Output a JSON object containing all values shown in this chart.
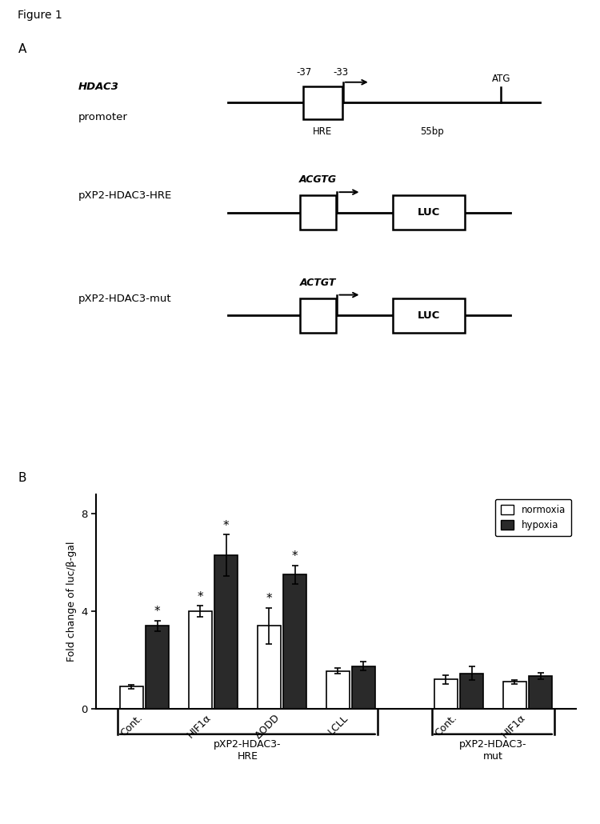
{
  "figure_title": "Figure 1",
  "panel_a_label": "A",
  "panel_b_label": "B",
  "background_color": "#ffffff",
  "hdac3_label": "HDAC3",
  "promoter_label": "promoter",
  "minus37_label": "-37",
  "minus33_label": "-33",
  "atg_label": "ATG",
  "hre_label": "HRE",
  "bp55_label": "55bp",
  "hre_construct_label": "pXP2-HDAC3-HRE",
  "hre_seq_label": "ACGTG",
  "mut_construct_label": "pXP2-HDAC3-mut",
  "mut_seq_label": "ACTGT",
  "luc_label": "LUC",
  "ylabel": "Fold change of luc/β-gal",
  "yticks": [
    0,
    4,
    8
  ],
  "ylim": [
    0,
    8.8
  ],
  "categories": [
    "Cont.",
    "HIF1α",
    "ΔODD",
    "LCLL",
    "Cont.",
    "HIF1α"
  ],
  "normoxia_values": [
    0.9,
    4.0,
    3.4,
    1.55,
    1.2,
    1.1
  ],
  "hypoxia_values": [
    3.4,
    6.3,
    5.5,
    1.75,
    1.45,
    1.35
  ],
  "normoxia_errors": [
    0.08,
    0.22,
    0.75,
    0.12,
    0.18,
    0.09
  ],
  "hypoxia_errors": [
    0.22,
    0.85,
    0.38,
    0.18,
    0.28,
    0.13
  ],
  "normoxia_color": "#ffffff",
  "hypoxia_color": "#2a2a2a",
  "bar_edge_color": "#000000",
  "legend_normoxia": "normoxia",
  "legend_hypoxia": "hypoxia",
  "group1_label": "pXP2-HDAC3-\nHRE",
  "group2_label": "pXP2-HDAC3-\nmut",
  "star_normoxia": [
    false,
    true,
    true,
    false,
    false,
    false
  ],
  "star_hypoxia": [
    true,
    true,
    true,
    false,
    false,
    false
  ]
}
